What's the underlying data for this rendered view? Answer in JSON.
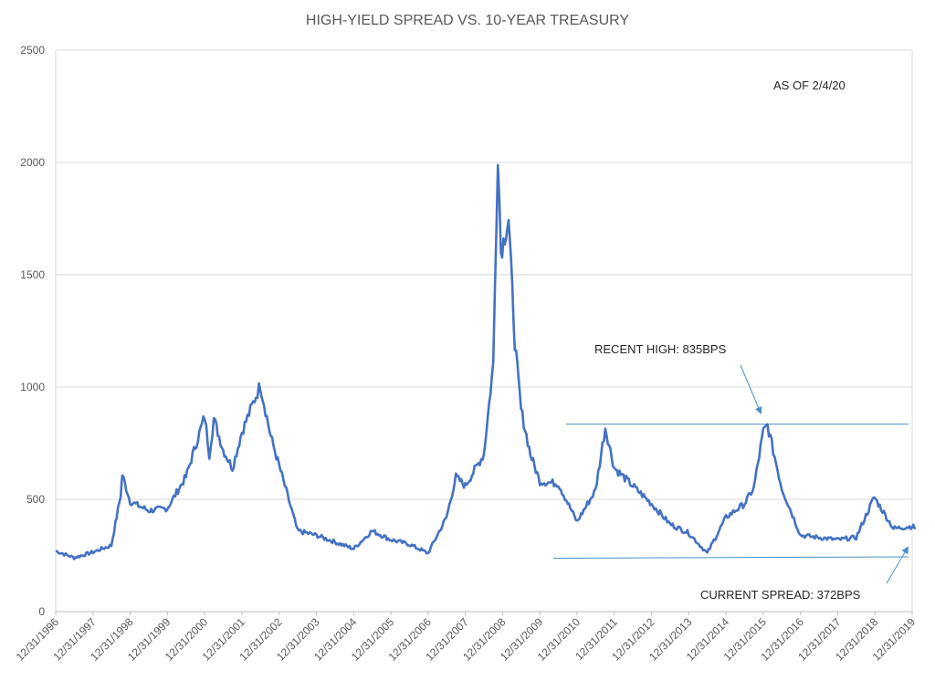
{
  "chart_data": {
    "type": "line",
    "title": "HIGH-YIELD SPREAD VS. 10-YEAR TREASURY",
    "xlabel": "",
    "ylabel": "",
    "ylim": [
      0,
      2500
    ],
    "y_ticks": [
      "0",
      "500",
      "1000",
      "1500",
      "2000",
      "2500"
    ],
    "x_range": [
      "12/31/1996",
      "12/31/2019"
    ],
    "x_ticks": [
      "12/31/1996",
      "12/31/1997",
      "12/31/1998",
      "12/31/1999",
      "12/31/2000",
      "12/31/2001",
      "12/31/2002",
      "12/31/2003",
      "12/31/2004",
      "12/31/2005",
      "12/31/2006",
      "12/31/2007",
      "12/31/2008",
      "12/31/2009",
      "12/31/2010",
      "12/31/2011",
      "12/31/2012",
      "12/31/2013",
      "12/31/2014",
      "12/31/2015",
      "12/31/2016",
      "12/31/2017",
      "12/31/2018",
      "12/31/2019"
    ],
    "grid": "horizontal",
    "series_color": "#4472c4",
    "series": [
      {
        "x": [
          "12/31/1996",
          "06/30/1997",
          "12/31/1997",
          "06/30/1998",
          "09/30/1998",
          "10/15/1998",
          "12/31/1998",
          "06/30/1999",
          "12/31/1999",
          "06/30/2000",
          "12/31/2000",
          "02/15/2001",
          "03/31/2001",
          "06/30/2001",
          "09/30/2001",
          "12/31/2001",
          "06/30/2002",
          "10/10/2002",
          "12/31/2002",
          "06/30/2003",
          "12/31/2003",
          "06/30/2004",
          "12/31/2004",
          "06/30/2005",
          "12/31/2005",
          "06/30/2006",
          "12/31/2006",
          "06/30/2007",
          "09/30/2007",
          "12/31/2007",
          "06/30/2008",
          "09/30/2008",
          "11/15/2008",
          "12/15/2008",
          "02/28/2009",
          "04/30/2009",
          "06/30/2009",
          "09/30/2009",
          "12/31/2009",
          "06/30/2010",
          "12/31/2010",
          "03/31/2011",
          "06/30/2011",
          "10/04/2011",
          "12/31/2011",
          "06/30/2012",
          "12/31/2012",
          "06/30/2013",
          "12/31/2013",
          "06/30/2014",
          "12/31/2014",
          "06/30/2015",
          "09/30/2015",
          "12/31/2015",
          "02/11/2016",
          "06/30/2016",
          "12/31/2016",
          "06/30/2017",
          "12/31/2017",
          "06/30/2018",
          "12/24/2018",
          "06/30/2019",
          "12/31/2019",
          "02/04/2020"
        ],
        "values": [
          270,
          240,
          265,
          295,
          520,
          610,
          490,
          450,
          460,
          600,
          870,
          700,
          860,
          720,
          640,
          800,
          1010,
          780,
          650,
          360,
          340,
          310,
          280,
          360,
          320,
          300,
          260,
          420,
          600,
          560,
          700,
          1100,
          2050,
          1600,
          1750,
          1200,
          900,
          700,
          580,
          570,
          400,
          470,
          540,
          820,
          640,
          560,
          480,
          390,
          350,
          260,
          420,
          480,
          550,
          800,
          830,
          550,
          340,
          330,
          320,
          330,
          510,
          370,
          380,
          372
        ]
      }
    ],
    "annotations": {
      "as_of": "AS OF 2/4/20",
      "recent_high": "RECENT HIGH: 835BPS",
      "current_spread": "CURRENT SPREAD: 372BPS"
    },
    "reference_lines": {
      "recent_high_bps": 835,
      "low_line_bps": 240
    }
  }
}
